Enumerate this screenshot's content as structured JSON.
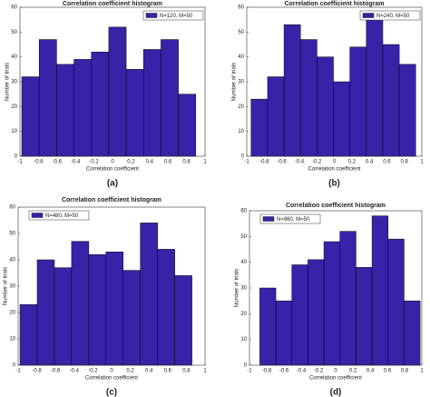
{
  "chart_data": [
    {
      "type": "histogram",
      "caption": "(a)",
      "title": "Correlation coefficient histogram",
      "xlabel": "Correlation coefficient",
      "ylabel": "Number of trials",
      "bins": [
        -0.98,
        -0.792,
        -0.604,
        -0.416,
        -0.228,
        -0.04,
        0.148,
        0.336,
        0.524,
        0.712,
        0.9
      ],
      "series": [
        {
          "name": "N=120, M=50",
          "color": "#3a22a8",
          "values": [
            32,
            47,
            37,
            39,
            42,
            52,
            35,
            43,
            47,
            25
          ]
        }
      ],
      "xlim": [
        -1,
        1
      ],
      "xticks": [
        -1,
        -0.8,
        -0.6,
        -0.4,
        -0.2,
        0,
        0.2,
        0.4,
        0.6,
        0.8,
        1
      ],
      "ylim": [
        0,
        60
      ],
      "yticks": [
        0,
        10,
        20,
        30,
        40,
        50,
        60
      ],
      "legend": "upper right"
    },
    {
      "type": "histogram",
      "caption": "(b)",
      "title": "Correlation coefficient histogram",
      "xlabel": "Correlation coefficient",
      "ylabel": "Number of trials",
      "bins": [
        -0.95,
        -0.762,
        -0.574,
        -0.386,
        -0.198,
        -0.01,
        0.178,
        0.366,
        0.554,
        0.742,
        0.93
      ],
      "series": [
        {
          "name": "N=240, M=50",
          "color": "#3a22a8",
          "values": [
            23,
            32,
            53,
            47,
            40,
            30,
            44,
            57,
            45,
            37
          ]
        }
      ],
      "xlim": [
        -1,
        1
      ],
      "xticks": [
        -1,
        -0.8,
        -0.6,
        -0.4,
        -0.2,
        0,
        0.2,
        0.4,
        0.6,
        0.8,
        1
      ],
      "ylim": [
        0,
        60
      ],
      "yticks": [
        0,
        10,
        20,
        30,
        40,
        50,
        60
      ],
      "legend": "upper right"
    },
    {
      "type": "histogram",
      "caption": "(c)",
      "title": "Correlation coefficient histogram",
      "xlabel": "Correlation coefficient",
      "ylabel": "Number of trials",
      "bins": [
        -0.98,
        -0.796,
        -0.612,
        -0.428,
        -0.244,
        -0.06,
        0.124,
        0.308,
        0.492,
        0.676,
        0.86
      ],
      "series": [
        {
          "name": "N=480, M=50",
          "color": "#3a22a8",
          "values": [
            23,
            40,
            37,
            47,
            42,
            43,
            36,
            54,
            44,
            34
          ]
        }
      ],
      "xlim": [
        -1,
        1
      ],
      "xticks": [
        -1,
        -0.8,
        -0.6,
        -0.4,
        -0.2,
        0,
        0.2,
        0.4,
        0.6,
        0.8,
        1
      ],
      "ylim": [
        0,
        60
      ],
      "yticks": [
        0,
        10,
        20,
        30,
        40,
        50,
        60
      ],
      "legend": "upper left"
    },
    {
      "type": "histogram",
      "caption": "(d)",
      "title": "Correlation coefficient histogram",
      "xlabel": "Correlation coefficient",
      "ylabel": "Number of trials",
      "bins": [
        -0.88,
        -0.694,
        -0.508,
        -0.322,
        -0.136,
        0.05,
        0.236,
        0.422,
        0.608,
        0.794,
        0.98
      ],
      "series": [
        {
          "name": "N=960, M=50",
          "color": "#3a22a8",
          "values": [
            30,
            25,
            39,
            41,
            48,
            52,
            38,
            58,
            49,
            25
          ]
        }
      ],
      "xlim": [
        -1,
        1
      ],
      "xticks": [
        -1,
        -0.8,
        -0.6,
        -0.4,
        -0.2,
        0,
        0.2,
        0.4,
        0.6,
        0.8,
        1
      ],
      "ylim": [
        0,
        60
      ],
      "yticks": [
        0,
        10,
        20,
        30,
        40,
        50,
        60
      ],
      "legend": "upper left"
    }
  ]
}
